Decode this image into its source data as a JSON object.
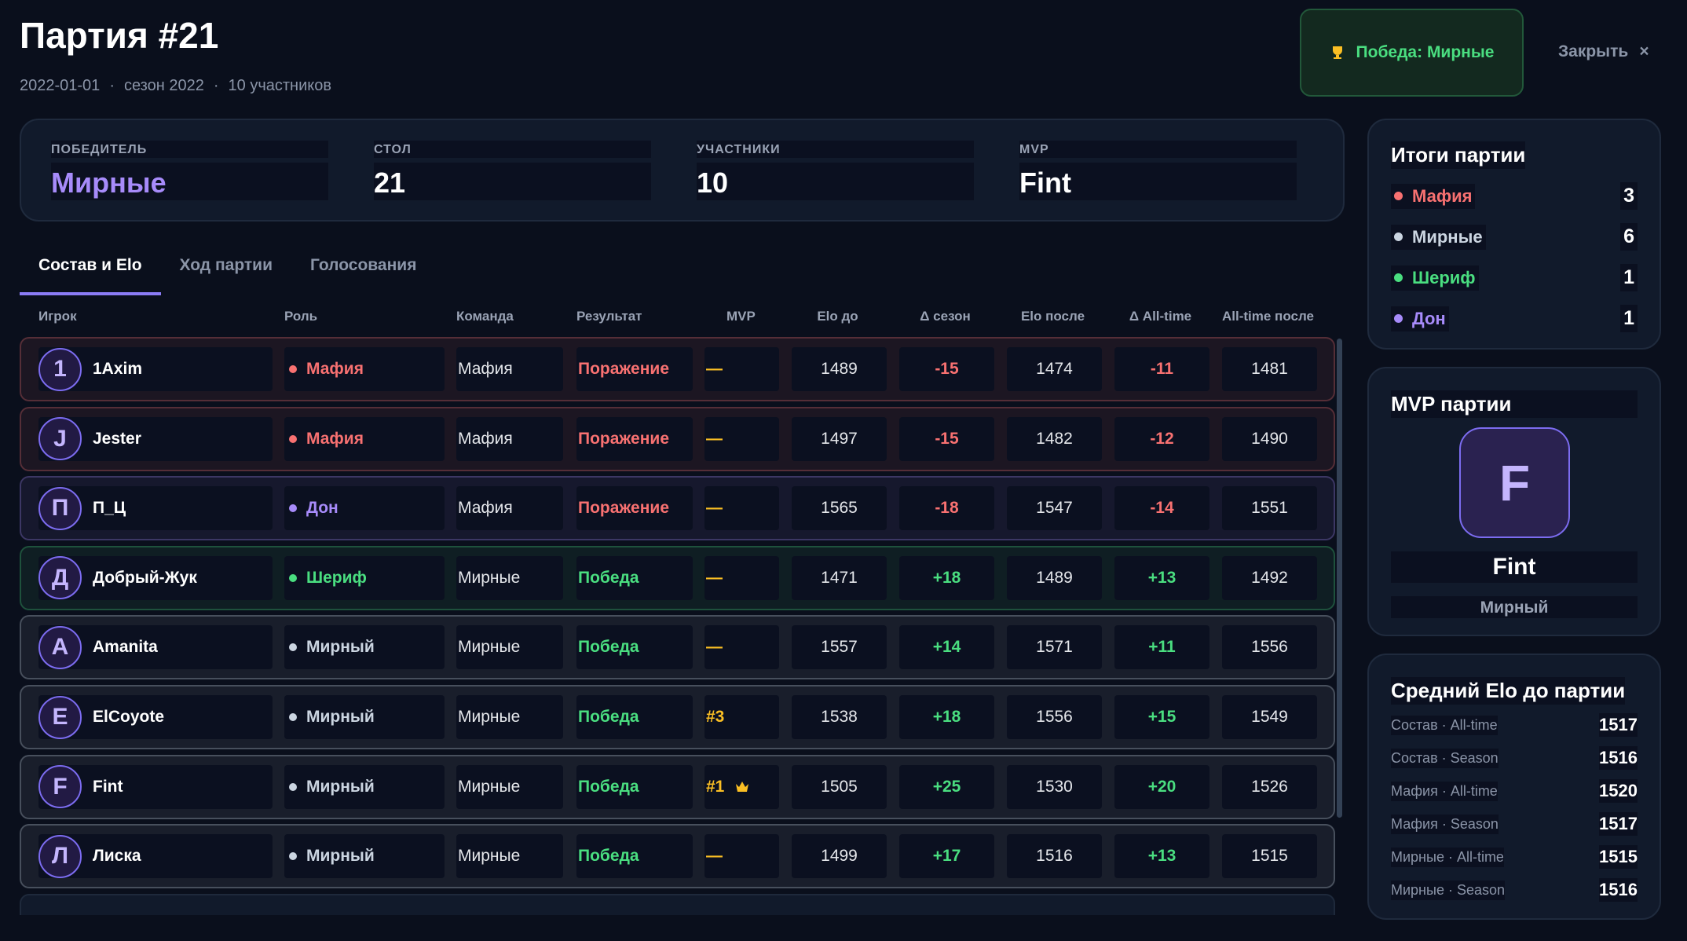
{
  "header": {
    "title": "Партия #21",
    "meta": [
      "2022-01-01",
      "сезон 2022",
      "10 участников"
    ],
    "winner_badge": "Победа: Мирные",
    "close": "Закрыть"
  },
  "summary": [
    {
      "label": "ПОБЕДИТЕЛЬ",
      "value": "Мирные"
    },
    {
      "label": "СТОЛ",
      "value": "21"
    },
    {
      "label": "УЧАСТНИКИ",
      "value": "10"
    },
    {
      "label": "MVP",
      "value": "Fint"
    }
  ],
  "tabs": [
    "Состав и Elo",
    "Ход партии",
    "Голосования"
  ],
  "table": {
    "columns": [
      "Игрок",
      "Роль",
      "Команда",
      "Результат",
      "MVP",
      "Elo до",
      "Δ сезон",
      "Elo после",
      "Δ All-time",
      "All-time после"
    ],
    "rows": [
      {
        "avatar": "1",
        "player": "1Axim",
        "role": "Мафия",
        "color": "#f87171",
        "team": "Мафия",
        "result": "Поражение",
        "mvp": "—",
        "elo_before": "1489",
        "delta_season": "-15",
        "elo_after": "1474",
        "delta_alltime": "-11",
        "alltime_after": "1481"
      },
      {
        "avatar": "J",
        "player": "Jester",
        "role": "Мафия",
        "color": "#f87171",
        "team": "Мафия",
        "result": "Поражение",
        "mvp": "—",
        "elo_before": "1497",
        "delta_season": "-15",
        "elo_after": "1482",
        "delta_alltime": "-12",
        "alltime_after": "1490"
      },
      {
        "avatar": "П",
        "player": "П_Ц",
        "role": "Дон",
        "color": "#a78bfa",
        "team": "Мафия",
        "result": "Поражение",
        "mvp": "—",
        "elo_before": "1565",
        "delta_season": "-18",
        "elo_after": "1547",
        "delta_alltime": "-14",
        "alltime_after": "1551"
      },
      {
        "avatar": "Д",
        "player": "Добрый-Жук",
        "role": "Шериф",
        "color": "#4ade80",
        "team": "Мирные",
        "result": "Победа",
        "mvp": "—",
        "elo_before": "1471",
        "delta_season": "+18",
        "elo_after": "1489",
        "delta_alltime": "+13",
        "alltime_after": "1492"
      },
      {
        "avatar": "A",
        "player": "Amanita",
        "role": "Мирный",
        "color": "#cbd5e1",
        "team": "Мирные",
        "result": "Победа",
        "mvp": "—",
        "elo_before": "1557",
        "delta_season": "+14",
        "elo_after": "1571",
        "delta_alltime": "+11",
        "alltime_after": "1556"
      },
      {
        "avatar": "E",
        "player": "ElCoyote",
        "role": "Мирный",
        "color": "#cbd5e1",
        "team": "Мирные",
        "result": "Победа",
        "mvp": "#3",
        "elo_before": "1538",
        "delta_season": "+18",
        "elo_after": "1556",
        "delta_alltime": "+15",
        "alltime_after": "1549"
      },
      {
        "avatar": "F",
        "player": "Fint",
        "role": "Мирный",
        "color": "#cbd5e1",
        "team": "Мирные",
        "result": "Победа",
        "mvp": "#1",
        "elo_before": "1505",
        "delta_season": "+25",
        "elo_after": "1530",
        "delta_alltime": "+20",
        "alltime_after": "1526"
      },
      {
        "avatar": "Л",
        "player": "Лиска",
        "role": "Мирный",
        "color": "#cbd5e1",
        "team": "Мирные",
        "result": "Победа",
        "mvp": "—",
        "elo_before": "1499",
        "delta_season": "+17",
        "elo_after": "1516",
        "delta_alltime": "+13",
        "alltime_after": "1515"
      }
    ]
  },
  "sidebar": {
    "results": {
      "title": "Итоги партии",
      "items": [
        {
          "name": "Мафия",
          "count": "3",
          "color": "#f87171"
        },
        {
          "name": "Мирные",
          "count": "6",
          "color": "#cbd5e1"
        },
        {
          "name": "Шериф",
          "count": "1",
          "color": "#4ade80"
        },
        {
          "name": "Дон",
          "count": "1",
          "color": "#a78bfa"
        }
      ]
    },
    "mvp": {
      "title": "MVP партии",
      "avatar": "F",
      "name": "Fint",
      "role": "Мирный"
    },
    "avg_elo": {
      "title": "Средний Elo до партии",
      "items": [
        {
          "label": "Состав · All-time",
          "value": "1517"
        },
        {
          "label": "Состав · Season",
          "value": "1516"
        },
        {
          "label": "Мафия · All-time",
          "value": "1520"
        },
        {
          "label": "Мафия · Season",
          "value": "1517"
        },
        {
          "label": "Мирные · All-time",
          "value": "1515"
        },
        {
          "label": "Мирные · Season",
          "value": "1516"
        }
      ]
    }
  }
}
